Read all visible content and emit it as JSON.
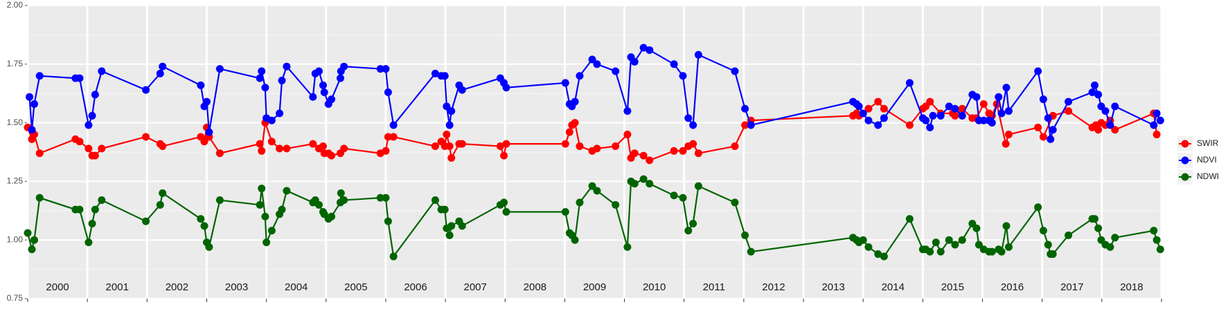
{
  "chart_data": {
    "type": "line",
    "xlim": [
      2000,
      2019
    ],
    "ylim": [
      0.75,
      2.0
    ],
    "yticks": [
      {
        "value": 0.75,
        "label": "0.75"
      },
      {
        "value": 1.0,
        "label": "1.00"
      },
      {
        "value": 1.25,
        "label": "1.25"
      },
      {
        "value": 1.5,
        "label": "1.50"
      },
      {
        "value": 1.75,
        "label": "1.75"
      },
      {
        "value": 2.0,
        "label": "2.00"
      }
    ],
    "xticks": [
      2000,
      2001,
      2002,
      2003,
      2004,
      2005,
      2006,
      2007,
      2008,
      2009,
      2010,
      2011,
      2012,
      2013,
      2014,
      2015,
      2016,
      2017,
      2018,
      2019
    ],
    "year_labels": [
      {
        "value": 2000.5,
        "label": "2000"
      },
      {
        "value": 2001.5,
        "label": "2001"
      },
      {
        "value": 2002.5,
        "label": "2002"
      },
      {
        "value": 2003.5,
        "label": "2003"
      },
      {
        "value": 2004.5,
        "label": "2004"
      },
      {
        "value": 2005.5,
        "label": "2005"
      },
      {
        "value": 2006.5,
        "label": "2006"
      },
      {
        "value": 2007.5,
        "label": "2007"
      },
      {
        "value": 2008.5,
        "label": "2008"
      },
      {
        "value": 2009.5,
        "label": "2009"
      },
      {
        "value": 2010.5,
        "label": "2010"
      },
      {
        "value": 2011.5,
        "label": "2011"
      },
      {
        "value": 2012.5,
        "label": "2012"
      },
      {
        "value": 2013.5,
        "label": "2013"
      },
      {
        "value": 2014.5,
        "label": "2014"
      },
      {
        "value": 2015.5,
        "label": "2015"
      },
      {
        "value": 2016.5,
        "label": "2016"
      },
      {
        "value": 2017.5,
        "label": "2017"
      },
      {
        "value": 2018.5,
        "label": "2018"
      }
    ],
    "grid": true,
    "legend": "right",
    "series": [
      {
        "name": "SWIR",
        "color": "#ff0000",
        "x": [
          2000.0,
          2000.07,
          2000.11,
          2000.2,
          2000.8,
          2000.87,
          2001.02,
          2001.08,
          2001.13,
          2001.24,
          2001.98,
          2002.22,
          2002.26,
          2002.9,
          2002.96,
          2003.0,
          2003.04,
          2003.22,
          2003.89,
          2003.92,
          2003.98,
          2004.09,
          2004.22,
          2004.34,
          2004.78,
          2004.88,
          2004.95,
          2004.97,
          2005.04,
          2005.09,
          2005.24,
          2005.3,
          2005.91,
          2006.0,
          2006.04,
          2006.13,
          2006.83,
          2006.93,
          2006.99,
          2007.02,
          2007.07,
          2007.1,
          2007.23,
          2007.28,
          2007.92,
          2007.98,
          2008.02,
          2009.01,
          2009.08,
          2009.12,
          2009.17,
          2009.25,
          2009.46,
          2009.54,
          2009.85,
          2010.05,
          2010.11,
          2010.17,
          2010.32,
          2010.42,
          2010.83,
          2010.98,
          2011.07,
          2011.15,
          2011.24,
          2011.85,
          2012.02,
          2012.12,
          2013.83,
          2013.89,
          2013.93,
          2014.09,
          2014.25,
          2014.35,
          2014.78,
          2015.0,
          2015.05,
          2015.12,
          2015.3,
          2015.5,
          2015.54,
          2015.66,
          2015.83,
          2015.9,
          2016.02,
          2016.11,
          2016.16,
          2016.24,
          2016.39,
          2016.44,
          2016.93,
          2017.02,
          2017.18,
          2017.44,
          2017.84,
          2017.9,
          2017.94,
          2017.99,
          2018.06,
          2018.14,
          2018.22,
          2018.87,
          2018.92
        ],
        "values": [
          1.48,
          1.43,
          1.45,
          1.37,
          1.43,
          1.42,
          1.39,
          1.36,
          1.36,
          1.39,
          1.44,
          1.41,
          1.4,
          1.44,
          1.42,
          1.48,
          1.44,
          1.37,
          1.41,
          1.38,
          1.5,
          1.42,
          1.39,
          1.39,
          1.41,
          1.39,
          1.4,
          1.37,
          1.37,
          1.36,
          1.37,
          1.39,
          1.37,
          1.38,
          1.44,
          1.44,
          1.4,
          1.42,
          1.4,
          1.45,
          1.4,
          1.35,
          1.41,
          1.41,
          1.4,
          1.36,
          1.41,
          1.41,
          1.46,
          1.49,
          1.5,
          1.4,
          1.38,
          1.39,
          1.4,
          1.45,
          1.35,
          1.37,
          1.36,
          1.34,
          1.38,
          1.38,
          1.4,
          1.41,
          1.37,
          1.4,
          1.49,
          1.51,
          1.53,
          1.54,
          1.53,
          1.56,
          1.59,
          1.56,
          1.49,
          1.56,
          1.57,
          1.59,
          1.54,
          1.54,
          1.53,
          1.56,
          1.52,
          1.52,
          1.58,
          1.54,
          1.53,
          1.58,
          1.41,
          1.45,
          1.48,
          1.44,
          1.53,
          1.55,
          1.48,
          1.49,
          1.47,
          1.5,
          1.49,
          1.51,
          1.47,
          1.54,
          1.45
        ]
      },
      {
        "name": "NDVI",
        "color": "#0000ff",
        "x": [
          2000.03,
          2000.07,
          2000.11,
          2000.2,
          2000.8,
          2000.87,
          2001.02,
          2001.08,
          2001.13,
          2001.24,
          2001.98,
          2002.22,
          2002.26,
          2002.9,
          2002.96,
          2003.0,
          2003.04,
          2003.22,
          2003.89,
          2003.92,
          2003.98,
          2004.0,
          2004.09,
          2004.22,
          2004.26,
          2004.34,
          2004.78,
          2004.82,
          2004.88,
          2004.95,
          2004.97,
          2005.04,
          2005.09,
          2005.24,
          2005.25,
          2005.3,
          2005.91,
          2006.0,
          2006.04,
          2006.13,
          2006.83,
          2006.93,
          2006.99,
          2007.02,
          2007.07,
          2007.1,
          2007.23,
          2007.28,
          2007.92,
          2007.98,
          2008.02,
          2009.01,
          2009.08,
          2009.12,
          2009.17,
          2009.25,
          2009.46,
          2009.54,
          2009.85,
          2010.05,
          2010.11,
          2010.17,
          2010.32,
          2010.42,
          2010.83,
          2010.98,
          2011.07,
          2011.15,
          2011.24,
          2011.85,
          2012.02,
          2012.12,
          2013.83,
          2013.89,
          2013.93,
          2014.0,
          2014.09,
          2014.25,
          2014.35,
          2014.78,
          2015.0,
          2015.05,
          2015.12,
          2015.17,
          2015.3,
          2015.44,
          2015.54,
          2015.66,
          2015.83,
          2015.9,
          2015.94,
          2016.02,
          2016.11,
          2016.16,
          2016.27,
          2016.32,
          2016.4,
          2016.44,
          2016.93,
          2017.02,
          2017.1,
          2017.14,
          2017.18,
          2017.44,
          2017.84,
          2017.88,
          2017.94,
          2017.99,
          2018.06,
          2018.14,
          2018.22,
          2018.87,
          2018.92,
          2018.98
        ],
        "values": [
          1.61,
          1.47,
          1.58,
          1.7,
          1.69,
          1.69,
          1.49,
          1.53,
          1.62,
          1.72,
          1.64,
          1.71,
          1.74,
          1.66,
          1.57,
          1.59,
          1.46,
          1.73,
          1.69,
          1.72,
          1.65,
          1.52,
          1.51,
          1.54,
          1.68,
          1.74,
          1.61,
          1.71,
          1.72,
          1.66,
          1.63,
          1.58,
          1.6,
          1.69,
          1.72,
          1.74,
          1.73,
          1.73,
          1.63,
          1.49,
          1.71,
          1.7,
          1.7,
          1.57,
          1.49,
          1.55,
          1.66,
          1.64,
          1.69,
          1.67,
          1.65,
          1.67,
          1.58,
          1.57,
          1.59,
          1.7,
          1.77,
          1.75,
          1.72,
          1.55,
          1.78,
          1.76,
          1.82,
          1.81,
          1.75,
          1.7,
          1.52,
          1.49,
          1.79,
          1.72,
          1.56,
          1.49,
          1.59,
          1.58,
          1.57,
          1.54,
          1.51,
          1.49,
          1.52,
          1.67,
          1.52,
          1.51,
          1.48,
          1.53,
          1.53,
          1.57,
          1.56,
          1.53,
          1.62,
          1.61,
          1.51,
          1.51,
          1.51,
          1.5,
          1.61,
          1.54,
          1.65,
          1.55,
          1.72,
          1.6,
          1.52,
          1.43,
          1.47,
          1.59,
          1.63,
          1.66,
          1.62,
          1.57,
          1.55,
          1.49,
          1.57,
          1.49,
          1.54,
          1.51
        ]
      },
      {
        "name": "NDWI",
        "color": "#006400",
        "x": [
          2000.0,
          2000.07,
          2000.11,
          2000.2,
          2000.8,
          2000.87,
          2001.02,
          2001.08,
          2001.13,
          2001.24,
          2001.98,
          2002.22,
          2002.26,
          2002.9,
          2002.96,
          2003.0,
          2003.04,
          2003.22,
          2003.89,
          2003.92,
          2003.98,
          2004.0,
          2004.09,
          2004.22,
          2004.26,
          2004.34,
          2004.78,
          2004.82,
          2004.88,
          2004.95,
          2004.97,
          2005.04,
          2005.09,
          2005.24,
          2005.25,
          2005.3,
          2005.91,
          2006.0,
          2006.04,
          2006.13,
          2006.83,
          2006.93,
          2006.99,
          2007.02,
          2007.07,
          2007.1,
          2007.23,
          2007.28,
          2007.92,
          2007.98,
          2008.02,
          2009.01,
          2009.08,
          2009.12,
          2009.17,
          2009.25,
          2009.46,
          2009.54,
          2009.85,
          2010.05,
          2010.11,
          2010.17,
          2010.32,
          2010.42,
          2010.83,
          2010.98,
          2011.07,
          2011.15,
          2011.24,
          2011.85,
          2012.02,
          2012.12,
          2013.83,
          2013.89,
          2013.93,
          2014.0,
          2014.09,
          2014.25,
          2014.35,
          2014.78,
          2015.0,
          2015.05,
          2015.12,
          2015.22,
          2015.3,
          2015.44,
          2015.54,
          2015.66,
          2015.83,
          2015.9,
          2015.94,
          2016.02,
          2016.11,
          2016.16,
          2016.27,
          2016.32,
          2016.4,
          2016.44,
          2016.93,
          2017.02,
          2017.1,
          2017.14,
          2017.18,
          2017.44,
          2017.84,
          2017.88,
          2017.94,
          2017.99,
          2018.06,
          2018.14,
          2018.22,
          2018.87,
          2018.92,
          2018.98
        ],
        "values": [
          1.03,
          0.96,
          1.0,
          1.18,
          1.13,
          1.13,
          0.99,
          1.07,
          1.13,
          1.17,
          1.08,
          1.15,
          1.2,
          1.09,
          1.06,
          0.99,
          0.97,
          1.17,
          1.15,
          1.22,
          1.1,
          0.99,
          1.04,
          1.11,
          1.13,
          1.21,
          1.16,
          1.17,
          1.15,
          1.12,
          1.11,
          1.09,
          1.1,
          1.16,
          1.2,
          1.17,
          1.18,
          1.18,
          1.08,
          0.93,
          1.17,
          1.13,
          1.13,
          1.05,
          1.02,
          1.06,
          1.08,
          1.06,
          1.15,
          1.16,
          1.12,
          1.12,
          1.03,
          1.02,
          1.0,
          1.16,
          1.23,
          1.21,
          1.15,
          0.97,
          1.25,
          1.24,
          1.26,
          1.24,
          1.19,
          1.18,
          1.04,
          1.07,
          1.23,
          1.16,
          1.02,
          0.95,
          1.01,
          1.0,
          0.99,
          1.0,
          0.97,
          0.94,
          0.93,
          1.09,
          0.96,
          0.96,
          0.95,
          0.99,
          0.95,
          1.0,
          0.98,
          1.0,
          1.07,
          1.05,
          0.98,
          0.96,
          0.95,
          0.95,
          0.96,
          0.95,
          1.06,
          0.97,
          1.14,
          1.04,
          0.98,
          0.94,
          0.94,
          1.02,
          1.09,
          1.09,
          1.05,
          1.0,
          0.98,
          0.97,
          1.01,
          1.04,
          1.0,
          0.96
        ]
      }
    ]
  }
}
